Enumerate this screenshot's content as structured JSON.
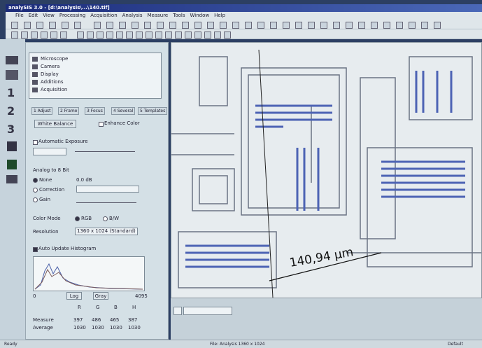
{
  "window": {
    "title": "analySIS 3.0 - [d:\\analysis\\...\\140.tif]"
  },
  "menu": [
    "File",
    "Edit",
    "View",
    "Processing",
    "Acquisition",
    "Analysis",
    "Measure",
    "Tools",
    "Window",
    "Help"
  ],
  "panel": {
    "tree": [
      "Microscope",
      "Camera",
      "Display",
      "Additions",
      "Acquisition"
    ],
    "tabs": [
      "1 Adjust",
      "2 Frame",
      "3 Focus",
      "4 Several",
      "5 Templates"
    ],
    "white_balance": "White Balance",
    "enhance_color": "Enhance Color",
    "auto_exposure": "Automatic Exposure",
    "analog_label": "Analog to 8 Bit",
    "radios": [
      "None",
      "Correction",
      "Gain"
    ],
    "none_value": "0.0 dB",
    "color_mode": "Color Mode",
    "rgb": "RGB",
    "bw": "B/W",
    "resolution": "Resolution",
    "resolution_value": "1360 x 1024 (Standard)",
    "auto_update": "Auto Update Histogram",
    "hist_min": "0",
    "hist_max": "4095",
    "log": "Log",
    "gray": "Gray",
    "channels": [
      "R",
      "G",
      "B",
      "H"
    ],
    "rows": [
      {
        "label": "Measure",
        "cells": [
          "397",
          "486",
          "465",
          "387"
        ]
      },
      {
        "label": "Average",
        "cells": [
          "1030",
          "1030",
          "1030",
          "1030"
        ]
      }
    ]
  },
  "image": {
    "measurement": "140,94 µm"
  },
  "status": {
    "left": "Ready",
    "middle": "File: Analysis 1360 x 1024",
    "right": "Default"
  }
}
